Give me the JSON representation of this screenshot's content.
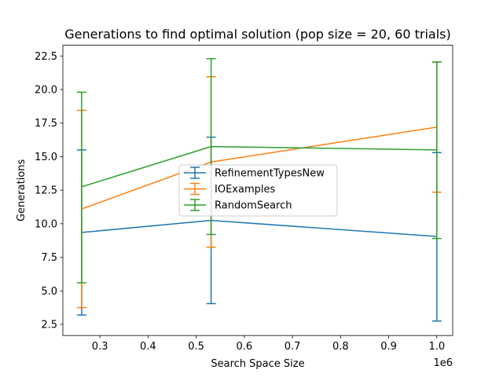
{
  "chart_data": {
    "type": "line",
    "title": "Generations to find optimal solution (pop size = 20, 60 trials)",
    "xlabel": "Search Space Size",
    "ylabel": "Generations",
    "x_offset_label": "1e6",
    "xlim": [
      0.223,
      1.033
    ],
    "ylim": [
      1.67,
      23.3
    ],
    "xticks": [
      0.3,
      0.4,
      0.5,
      0.6,
      0.7,
      0.8,
      0.9,
      1.0
    ],
    "xtick_labels": [
      "0.3",
      "0.4",
      "0.5",
      "0.6",
      "0.7",
      "0.8",
      "0.9",
      "1.0"
    ],
    "yticks": [
      2.5,
      5.0,
      7.5,
      10.0,
      12.5,
      15.0,
      17.5,
      20.0,
      22.5
    ],
    "ytick_labels": [
      "2.5",
      "5.0",
      "7.5",
      "10.0",
      "12.5",
      "15.0",
      "17.5",
      "20.0",
      "22.5"
    ],
    "grid": false,
    "legend_position": "center",
    "series": [
      {
        "name": "RefinementTypesNew",
        "color": "#1f77b4",
        "x": [
          0.262,
          0.531,
          1.0
        ],
        "y": [
          9.35,
          10.25,
          9.05
        ],
        "err_low": [
          3.2,
          4.05,
          2.75
        ],
        "err_high": [
          15.5,
          16.45,
          15.3
        ]
      },
      {
        "name": "IOExamples",
        "color": "#ff7f0e",
        "x": [
          0.262,
          0.531,
          1.0
        ],
        "y": [
          11.1,
          14.6,
          17.2
        ],
        "err_low": [
          3.75,
          8.25,
          12.35
        ],
        "err_high": [
          18.45,
          20.95,
          22.05
        ]
      },
      {
        "name": "RandomSearch",
        "color": "#2ca02c",
        "x": [
          0.262,
          0.531,
          1.0
        ],
        "y": [
          12.75,
          15.75,
          15.5
        ],
        "err_low": [
          5.6,
          9.2,
          8.9
        ],
        "err_high": [
          19.8,
          22.3,
          22.05
        ]
      }
    ]
  }
}
